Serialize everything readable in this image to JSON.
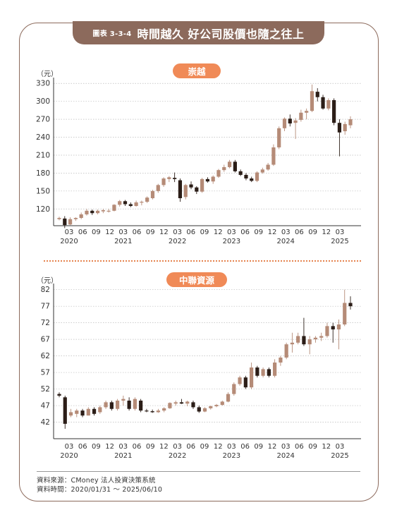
{
  "header": {
    "tag": "圖表 3-3-4",
    "title": "時間越久 好公司股價也隨之往上"
  },
  "colors": {
    "up": "#b58b77",
    "down": "#2b1d17",
    "frame": "#8c6a5c",
    "badge": "#f08a57"
  },
  "x_tick_labels": [
    "03",
    "06",
    "09",
    "12",
    "03",
    "06",
    "09",
    "12",
    "03",
    "06",
    "09",
    "12",
    "03",
    "06",
    "09",
    "12",
    "03",
    "06",
    "09",
    "12",
    "03"
  ],
  "year_labels": [
    "2020",
    "2021",
    "2022",
    "2023",
    "2024",
    "2025"
  ],
  "chart_data": [
    {
      "type": "candlestick",
      "title": "崇越",
      "ylabel": "（元）",
      "ylim": [
        92,
        335
      ],
      "yticks": [
        120,
        150,
        180,
        210,
        240,
        270,
        300,
        330
      ],
      "grid": true,
      "candles": [
        {
          "o": 103,
          "h": 107,
          "l": 101,
          "c": 105
        },
        {
          "o": 104,
          "h": 108,
          "l": 88,
          "c": 93
        },
        {
          "o": 94,
          "h": 106,
          "l": 93,
          "c": 103
        },
        {
          "o": 103,
          "h": 106,
          "l": 100,
          "c": 105
        },
        {
          "o": 105,
          "h": 114,
          "l": 103,
          "c": 111
        },
        {
          "o": 111,
          "h": 120,
          "l": 109,
          "c": 117
        },
        {
          "o": 117,
          "h": 119,
          "l": 110,
          "c": 113
        },
        {
          "o": 113,
          "h": 119,
          "l": 111,
          "c": 117
        },
        {
          "o": 116,
          "h": 120,
          "l": 113,
          "c": 118
        },
        {
          "o": 117,
          "h": 120,
          "l": 114,
          "c": 117
        },
        {
          "o": 117,
          "h": 128,
          "l": 116,
          "c": 127
        },
        {
          "o": 127,
          "h": 135,
          "l": 124,
          "c": 133
        },
        {
          "o": 133,
          "h": 135,
          "l": 125,
          "c": 128
        },
        {
          "o": 128,
          "h": 131,
          "l": 123,
          "c": 125
        },
        {
          "o": 125,
          "h": 134,
          "l": 124,
          "c": 131
        },
        {
          "o": 131,
          "h": 134,
          "l": 126,
          "c": 132
        },
        {
          "o": 132,
          "h": 141,
          "l": 130,
          "c": 139
        },
        {
          "o": 138,
          "h": 152,
          "l": 136,
          "c": 150
        },
        {
          "o": 150,
          "h": 162,
          "l": 147,
          "c": 160
        },
        {
          "o": 160,
          "h": 173,
          "l": 157,
          "c": 171
        },
        {
          "o": 170,
          "h": 175,
          "l": 165,
          "c": 173
        },
        {
          "o": 172,
          "h": 181,
          "l": 165,
          "c": 170
        },
        {
          "o": 168,
          "h": 171,
          "l": 132,
          "c": 138
        },
        {
          "o": 140,
          "h": 162,
          "l": 136,
          "c": 160
        },
        {
          "o": 161,
          "h": 166,
          "l": 153,
          "c": 156
        },
        {
          "o": 156,
          "h": 158,
          "l": 145,
          "c": 149
        },
        {
          "o": 149,
          "h": 172,
          "l": 147,
          "c": 170
        },
        {
          "o": 170,
          "h": 173,
          "l": 164,
          "c": 166
        },
        {
          "o": 166,
          "h": 176,
          "l": 162,
          "c": 174
        },
        {
          "o": 174,
          "h": 187,
          "l": 172,
          "c": 185
        },
        {
          "o": 185,
          "h": 194,
          "l": 182,
          "c": 190
        },
        {
          "o": 190,
          "h": 202,
          "l": 188,
          "c": 199
        },
        {
          "o": 199,
          "h": 202,
          "l": 181,
          "c": 183
        },
        {
          "o": 183,
          "h": 186,
          "l": 175,
          "c": 177
        },
        {
          "o": 177,
          "h": 180,
          "l": 168,
          "c": 171
        },
        {
          "o": 171,
          "h": 174,
          "l": 165,
          "c": 167
        },
        {
          "o": 167,
          "h": 183,
          "l": 165,
          "c": 181
        },
        {
          "o": 181,
          "h": 189,
          "l": 179,
          "c": 186
        },
        {
          "o": 186,
          "h": 197,
          "l": 184,
          "c": 194
        },
        {
          "o": 194,
          "h": 228,
          "l": 192,
          "c": 223
        },
        {
          "o": 223,
          "h": 258,
          "l": 220,
          "c": 255
        },
        {
          "o": 255,
          "h": 273,
          "l": 250,
          "c": 271
        },
        {
          "o": 271,
          "h": 278,
          "l": 258,
          "c": 263
        },
        {
          "o": 264,
          "h": 272,
          "l": 237,
          "c": 268
        },
        {
          "o": 269,
          "h": 286,
          "l": 266,
          "c": 281
        },
        {
          "o": 281,
          "h": 288,
          "l": 270,
          "c": 284
        },
        {
          "o": 284,
          "h": 328,
          "l": 282,
          "c": 317
        },
        {
          "o": 316,
          "h": 322,
          "l": 300,
          "c": 307
        },
        {
          "o": 307,
          "h": 311,
          "l": 286,
          "c": 288
        },
        {
          "o": 288,
          "h": 305,
          "l": 285,
          "c": 302
        },
        {
          "o": 302,
          "h": 305,
          "l": 260,
          "c": 264
        },
        {
          "o": 264,
          "h": 270,
          "l": 208,
          "c": 248
        },
        {
          "o": 250,
          "h": 266,
          "l": 244,
          "c": 262
        },
        {
          "o": 260,
          "h": 275,
          "l": 255,
          "c": 270
        }
      ]
    },
    {
      "type": "candlestick",
      "title": "中聯資源",
      "ylabel": "（元）",
      "ylim": [
        37,
        83
      ],
      "yticks": [
        42,
        47,
        52,
        57,
        62,
        67,
        72,
        77,
        82
      ],
      "grid": true,
      "candles": [
        {
          "o": 50.5,
          "h": 51,
          "l": 49.5,
          "c": 50
        },
        {
          "o": 49.5,
          "h": 50,
          "l": 40,
          "c": 41.5
        },
        {
          "o": 44,
          "h": 46,
          "l": 43.5,
          "c": 45
        },
        {
          "o": 44.5,
          "h": 46,
          "l": 43.5,
          "c": 45.5
        },
        {
          "o": 45.5,
          "h": 46,
          "l": 43.5,
          "c": 44
        },
        {
          "o": 44,
          "h": 46.5,
          "l": 44,
          "c": 46
        },
        {
          "o": 46,
          "h": 46.5,
          "l": 44,
          "c": 44.5
        },
        {
          "o": 45,
          "h": 47,
          "l": 44.5,
          "c": 46.5
        },
        {
          "o": 46.5,
          "h": 48.5,
          "l": 46,
          "c": 48
        },
        {
          "o": 48,
          "h": 48.5,
          "l": 45.5,
          "c": 46
        },
        {
          "o": 46,
          "h": 49,
          "l": 45.5,
          "c": 48.5
        },
        {
          "o": 48.5,
          "h": 50,
          "l": 47,
          "c": 49
        },
        {
          "o": 48.5,
          "h": 49.5,
          "l": 45.5,
          "c": 46
        },
        {
          "o": 46,
          "h": 49.5,
          "l": 45.5,
          "c": 49
        },
        {
          "o": 48.5,
          "h": 49,
          "l": 45,
          "c": 45.5
        },
        {
          "o": 45.5,
          "h": 46,
          "l": 45,
          "c": 45.3
        },
        {
          "o": 45.3,
          "h": 45.8,
          "l": 44.8,
          "c": 45
        },
        {
          "o": 45,
          "h": 46,
          "l": 44.8,
          "c": 45.5
        },
        {
          "o": 45.5,
          "h": 46.5,
          "l": 45,
          "c": 46.2
        },
        {
          "o": 46.2,
          "h": 48,
          "l": 46,
          "c": 47.8
        },
        {
          "o": 47.6,
          "h": 48.5,
          "l": 47,
          "c": 48
        },
        {
          "o": 48,
          "h": 49,
          "l": 47.5,
          "c": 47.6
        },
        {
          "o": 47.6,
          "h": 48.5,
          "l": 46.8,
          "c": 48.2
        },
        {
          "o": 48,
          "h": 48.5,
          "l": 46,
          "c": 46.5
        },
        {
          "o": 46.5,
          "h": 47,
          "l": 44.8,
          "c": 45.2
        },
        {
          "o": 45.2,
          "h": 46.5,
          "l": 45,
          "c": 46.2
        },
        {
          "o": 46.2,
          "h": 47,
          "l": 45.8,
          "c": 46.8
        },
        {
          "o": 46.8,
          "h": 47.5,
          "l": 46.5,
          "c": 47.2
        },
        {
          "o": 47.2,
          "h": 48.5,
          "l": 47,
          "c": 48.2
        },
        {
          "o": 48.2,
          "h": 51,
          "l": 48,
          "c": 50.5
        },
        {
          "o": 50.5,
          "h": 54,
          "l": 50,
          "c": 53.5
        },
        {
          "o": 53.5,
          "h": 56,
          "l": 53,
          "c": 55.5
        },
        {
          "o": 55.5,
          "h": 56,
          "l": 52,
          "c": 52.5
        },
        {
          "o": 52.5,
          "h": 60,
          "l": 52,
          "c": 58.5
        },
        {
          "o": 58.5,
          "h": 59,
          "l": 55.5,
          "c": 56
        },
        {
          "o": 56,
          "h": 58.5,
          "l": 55.5,
          "c": 58
        },
        {
          "o": 58,
          "h": 58.5,
          "l": 55.5,
          "c": 56
        },
        {
          "o": 56,
          "h": 61,
          "l": 55.5,
          "c": 60
        },
        {
          "o": 60,
          "h": 62,
          "l": 59,
          "c": 61.5
        },
        {
          "o": 61.5,
          "h": 66,
          "l": 61,
          "c": 65.5
        },
        {
          "o": 65.5,
          "h": 69,
          "l": 63,
          "c": 66
        },
        {
          "o": 66,
          "h": 69,
          "l": 65.5,
          "c": 68
        },
        {
          "o": 68,
          "h": 73.5,
          "l": 65,
          "c": 65.5
        },
        {
          "o": 65.5,
          "h": 68,
          "l": 62.5,
          "c": 67
        },
        {
          "o": 67,
          "h": 68,
          "l": 66,
          "c": 67.5
        },
        {
          "o": 67.5,
          "h": 69,
          "l": 66.5,
          "c": 68
        },
        {
          "o": 68,
          "h": 72,
          "l": 67.5,
          "c": 71
        },
        {
          "o": 71,
          "h": 72,
          "l": 66,
          "c": 70
        },
        {
          "o": 70,
          "h": 73,
          "l": 64,
          "c": 71.5
        },
        {
          "o": 71.5,
          "h": 82,
          "l": 71,
          "c": 78
        },
        {
          "o": 78,
          "h": 80,
          "l": 76,
          "c": 77
        }
      ]
    }
  ],
  "source": {
    "line1": "資料來源：CMoney 法人投資決策系統",
    "line2": "資料時間：2020/01/31 ～ 2025/06/10"
  }
}
